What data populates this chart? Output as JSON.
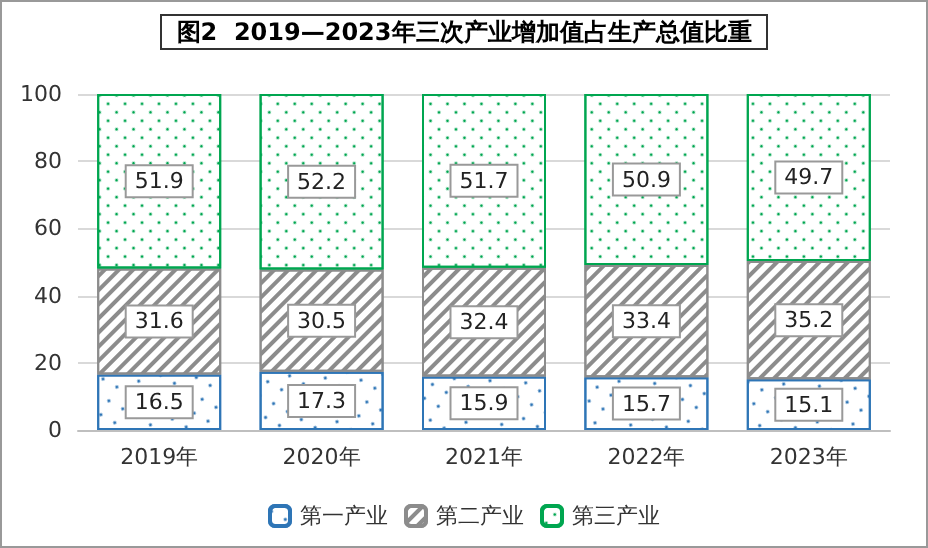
{
  "chart_data": {
    "type": "bar",
    "title": "图2  2019—2023年三次产业增加值占生产总值比重",
    "categories": [
      "2019年",
      "2020年",
      "2021年",
      "2022年",
      "2023年"
    ],
    "stacked": true,
    "data_labels": true,
    "ylim": [
      0,
      100
    ],
    "yticks": [
      0,
      20,
      40,
      60,
      80,
      100
    ],
    "grid": "y",
    "legend": "bottom",
    "series": [
      {
        "name": "第一产业",
        "color": "#2e75b6",
        "values": [
          16.5,
          17.3,
          15.9,
          15.7,
          15.1
        ]
      },
      {
        "name": "第二产业",
        "color": "#8c8c8c",
        "values": [
          31.6,
          30.5,
          32.4,
          33.4,
          35.2
        ]
      },
      {
        "name": "第三产业",
        "color": "#00a650",
        "values": [
          51.9,
          52.2,
          51.7,
          50.9,
          49.7
        ]
      }
    ]
  }
}
